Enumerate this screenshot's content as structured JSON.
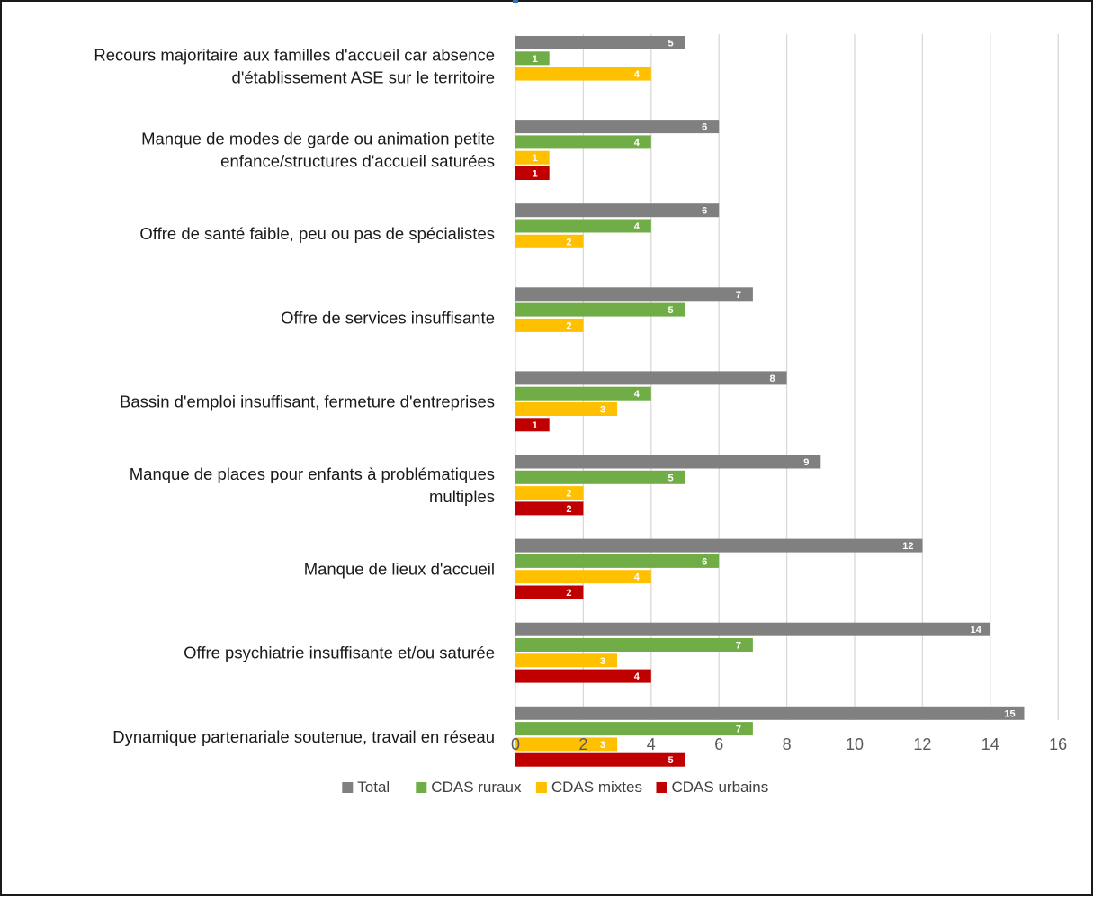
{
  "chart_data": {
    "type": "bar",
    "orientation": "horizontal",
    "categories": [
      [
        "Recours majoritaire aux familles d'accueil car absence",
        "d'établissement ASE sur le territoire"
      ],
      [
        "Manque de modes de garde ou animation petite",
        "enfance/structures d'accueil saturées"
      ],
      [
        "Offre de santé faible, peu ou pas de spécialistes"
      ],
      [
        "Offre de services insuffisante "
      ],
      [
        "Bassin d'emploi insuffisant, fermeture d'entreprises"
      ],
      [
        "Manque de places pour enfants à problématiques ",
        "multiples"
      ],
      [
        "Manque de lieux d'accueil"
      ],
      [
        "Offre psychiatrie insuffisante et/ou saturée"
      ],
      [
        "Dynamique partenariale soutenue, travail en réseau"
      ]
    ],
    "series": [
      {
        "name": "Total",
        "color": "#808080",
        "values": [
          5,
          6,
          6,
          7,
          8,
          9,
          12,
          14,
          15
        ]
      },
      {
        "name": "CDAS ruraux",
        "color": "#70ad47",
        "values": [
          1,
          4,
          4,
          5,
          4,
          5,
          6,
          7,
          7
        ]
      },
      {
        "name": "CDAS mixtes",
        "color": "#ffc000",
        "values": [
          4,
          1,
          2,
          2,
          3,
          2,
          4,
          3,
          3
        ]
      },
      {
        "name": "CDAS urbains",
        "color": "#c00000",
        "values": [
          null,
          1,
          null,
          null,
          1,
          2,
          2,
          4,
          5
        ]
      }
    ],
    "xlim": [
      0,
      16
    ],
    "xticks": [
      0,
      2,
      4,
      6,
      8,
      10,
      12,
      14,
      16
    ],
    "grid": true,
    "data_labels": true,
    "legend_position": "bottom",
    "title": "",
    "xlabel": "",
    "ylabel": ""
  }
}
